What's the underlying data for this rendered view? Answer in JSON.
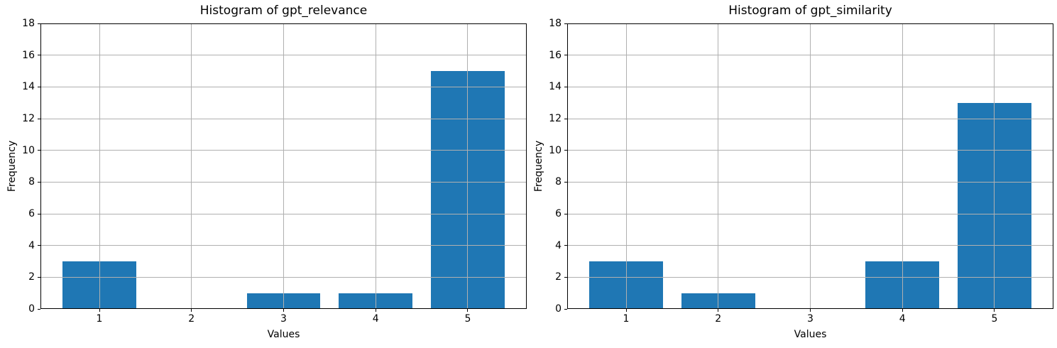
{
  "figure": {
    "background_color": "#ffffff",
    "bar_color": "#1f77b4",
    "grid_color": "#b0b0b0",
    "axis_color": "#000000",
    "text_color": "#000000"
  },
  "chart_data": [
    {
      "type": "bar",
      "title": "Histogram of gpt_relevance",
      "xlabel": "Values",
      "ylabel": "Frequency",
      "categories": [
        1,
        2,
        3,
        4,
        5
      ],
      "values": [
        3,
        0,
        1,
        1,
        15
      ],
      "bar_width": 0.8,
      "xlim": [
        0.36,
        5.64
      ],
      "ylim": [
        0,
        18
      ],
      "xticks": [
        1,
        2,
        3,
        4,
        5
      ],
      "yticks": [
        0,
        2,
        4,
        6,
        8,
        10,
        12,
        14,
        16,
        18
      ],
      "grid": true,
      "grid_above_bars": true,
      "legend_position": "none"
    },
    {
      "type": "bar",
      "title": "Histogram of gpt_similarity",
      "xlabel": "Values",
      "ylabel": "Frequency",
      "categories": [
        1,
        2,
        3,
        4,
        5
      ],
      "values": [
        3,
        1,
        0,
        3,
        13
      ],
      "bar_width": 0.8,
      "xlim": [
        0.36,
        5.64
      ],
      "ylim": [
        0,
        18
      ],
      "xticks": [
        1,
        2,
        3,
        4,
        5
      ],
      "yticks": [
        0,
        2,
        4,
        6,
        8,
        10,
        12,
        14,
        16,
        18
      ],
      "grid": true,
      "grid_above_bars": true,
      "legend_position": "none"
    }
  ]
}
